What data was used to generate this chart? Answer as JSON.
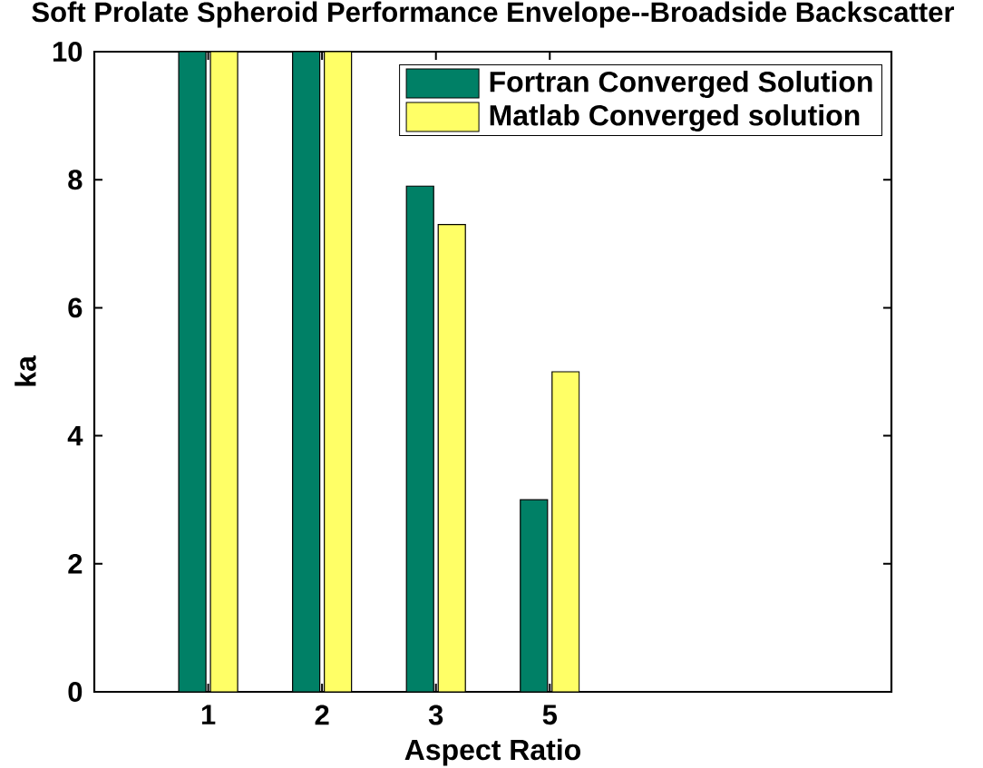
{
  "chart_data": {
    "type": "bar",
    "title": "Soft Prolate Spheroid Performance Envelope--Broadside Backscatter",
    "xlabel": "Aspect Ratio",
    "ylabel": "ka",
    "categories": [
      "1",
      "2",
      "3",
      "5"
    ],
    "series": [
      {
        "name": "Fortran Converged Solution",
        "color": "#008066",
        "values": [
          10,
          10,
          7.9,
          3
        ]
      },
      {
        "name": "Matlab Converged solution",
        "color": "#ffff66",
        "values": [
          10,
          10,
          7.3,
          5
        ]
      }
    ],
    "ylim": [
      0,
      10
    ],
    "yticks": [
      0,
      2,
      4,
      6,
      8,
      10
    ],
    "legend": "top right"
  }
}
